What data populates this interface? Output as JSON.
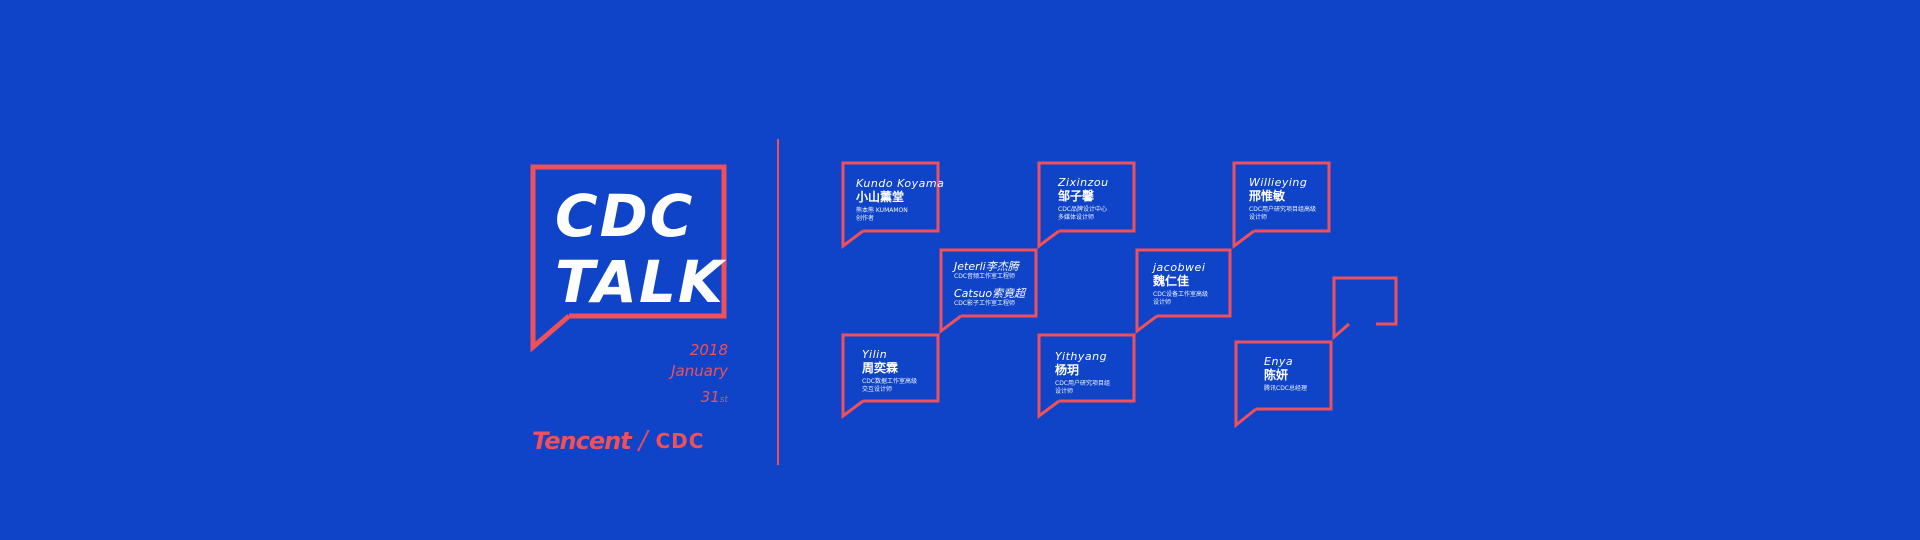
{
  "hero": {
    "title_line1": "CDC",
    "title_line2": "TALK"
  },
  "date": {
    "year": "2018",
    "month": "January",
    "day": "31",
    "day_suffix": "st"
  },
  "brand": {
    "company": "Tencent",
    "separator": "/",
    "team": "CDC"
  },
  "colors": {
    "background": "#0f44c9",
    "accent": "#f0505a",
    "text": "#ffffff"
  },
  "speakers": {
    "kundo": {
      "en": "Kundo Koyama",
      "cn": "小山薰堂",
      "role1": "熊本熊 KUMAMON",
      "role2": "创作者"
    },
    "zixinzou": {
      "en": "Zixinzou",
      "cn": "邹子馨",
      "role1": "CDC品牌设计中心",
      "role2": "多媒体设计师"
    },
    "willieying": {
      "en": "Willieying",
      "cn": "邢惟敏",
      "role1": "CDC用户研究项目组高级",
      "role2": "设计师"
    },
    "jeterli": {
      "name": "Jeterli李杰腾",
      "role": "CDC音频工作室工程师"
    },
    "catsuo": {
      "name": "Catsuo索竟超",
      "role": "CDC影子工作室工程师"
    },
    "jacobwei": {
      "en": "jacobwei",
      "cn": "魏仁佳",
      "role1": "CDC设备工作室高级",
      "role2": "设计师"
    },
    "yilin": {
      "en": "Yilin",
      "cn": "周奕霖",
      "role1": "CDC数据工作室高级",
      "role2": "交互设计师"
    },
    "yithyang": {
      "en": "Yithyang",
      "cn": "杨玥",
      "role1": "CDC用户研究项目组",
      "role2": "设计师"
    },
    "enya": {
      "en": "Enya",
      "cn": "陈妍",
      "role1": "腾讯CDC总经理"
    }
  }
}
